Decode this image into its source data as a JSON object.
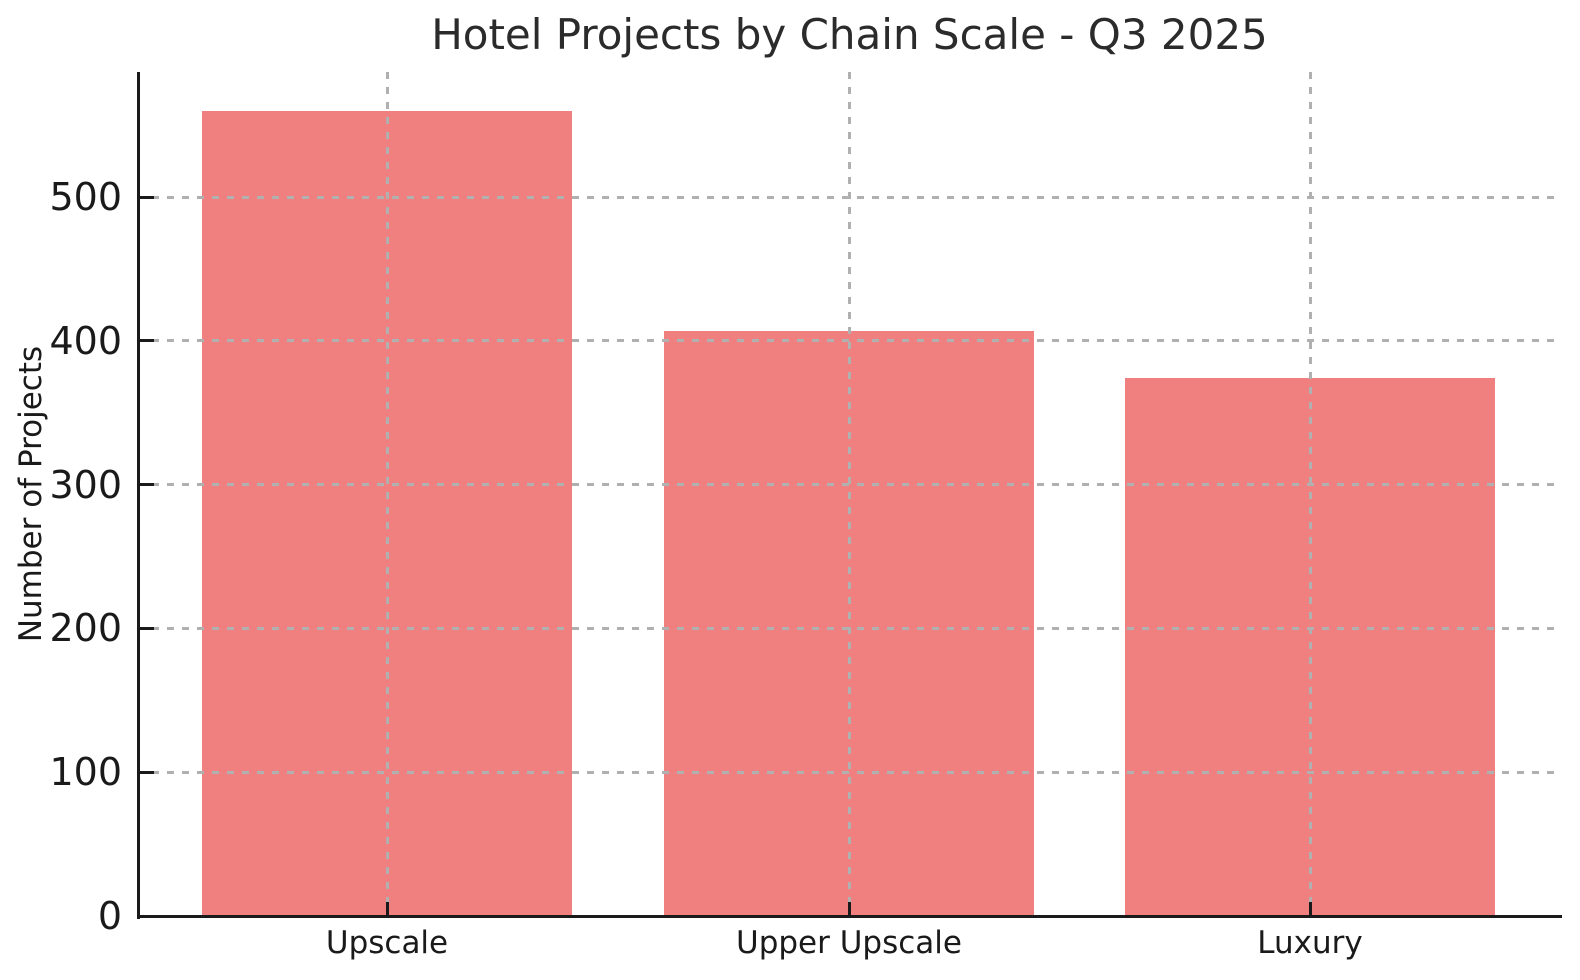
{
  "chart_data": {
    "type": "bar",
    "title": "Hotel Projects by Chain Scale - Q3 2025",
    "xlabel": "",
    "ylabel": "Number of Projects",
    "categories": [
      "Upscale",
      "Upper Upscale",
      "Luxury"
    ],
    "values": [
      560,
      407,
      374
    ],
    "yticks": [
      0,
      100,
      200,
      300,
      400,
      500
    ],
    "ylim": [
      0,
      587
    ],
    "bar_color": "#F08080",
    "grid": {
      "on": true,
      "style": "dashed",
      "color": "#b0b0b0",
      "orientation": "both"
    },
    "axis_color": "#1a1a1a",
    "background": "#ffffff",
    "legend_position": "none"
  }
}
